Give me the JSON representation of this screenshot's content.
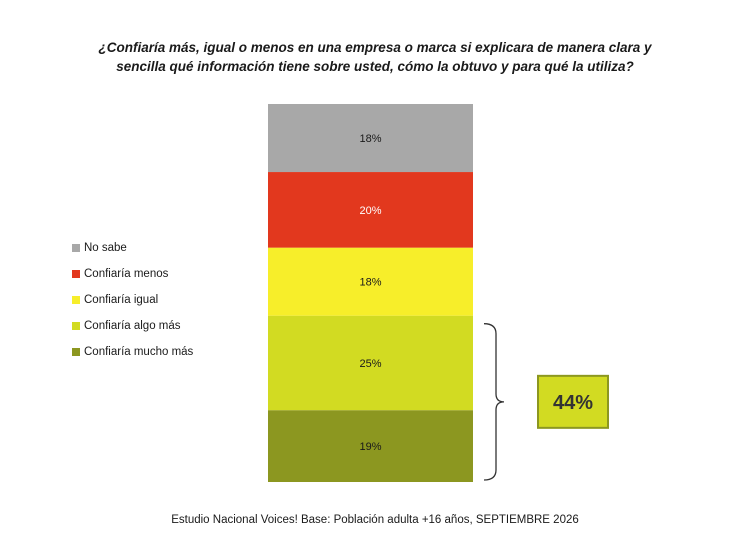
{
  "chart_data": {
    "type": "bar",
    "stacked": true,
    "title_lines": [
      "¿Confiaría más, igual o menos en una empresa o marca si explicara de manera clara y",
      "sencilla qué información tiene sobre usted, cómo la obtuvo y para qué la utiliza?"
    ],
    "series": [
      {
        "name": "Confiaría mucho más",
        "value": 19,
        "label": "19%",
        "color": "#8c9720",
        "label_color": "#1a1a1a"
      },
      {
        "name": "Confiaría algo más",
        "value": 25,
        "label": "25%",
        "color": "#d2db22",
        "label_color": "#1a1a1a"
      },
      {
        "name": "Confiaría igual",
        "value": 18,
        "label": "18%",
        "color": "#f7ee2a",
        "label_color": "#1a1a1a"
      },
      {
        "name": "Confiaría menos",
        "value": 20,
        "label": "20%",
        "color": "#e2381e",
        "label_color": "#ffffff"
      },
      {
        "name": "No sabe",
        "value": 18,
        "label": "18%",
        "color": "#a8a8a8",
        "label_color": "#1a1a1a"
      }
    ],
    "legend_order": [
      "No sabe",
      "Confiaría menos",
      "Confiaría igual",
      "Confiaría algo más",
      "Confiaría mucho más"
    ],
    "legend_position": "left",
    "bracket": {
      "covers": [
        "Confiaría mucho más",
        "Confiaría algo más"
      ],
      "label": "44%",
      "fill": "#d2db22",
      "border": "#8c9720"
    }
  },
  "source": "Estudio Nacional Voices! Base: Población adulta +16 años, SEPTIEMBRE 2026"
}
